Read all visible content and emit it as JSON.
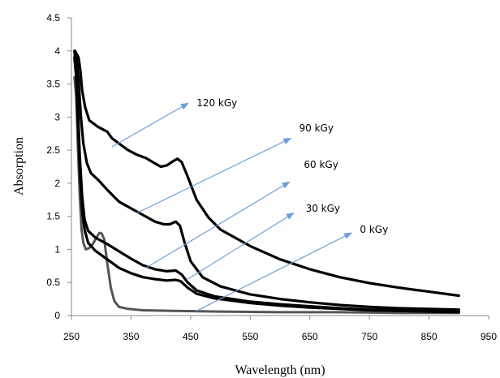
{
  "chart_data": {
    "type": "line",
    "title": "",
    "xlabel": "Wavelength (nm)",
    "ylabel": "Absorption",
    "xlim": [
      250,
      950
    ],
    "ylim": [
      0,
      4.5
    ],
    "xticks": [
      "250",
      "350",
      "450",
      "550",
      "650",
      "750",
      "850",
      "950"
    ],
    "yticks": [
      "0",
      "0.5",
      "1",
      "1.5",
      "2",
      "2.5",
      "3",
      "3.5",
      "4",
      "4.5"
    ],
    "grid": false,
    "legend": "none",
    "series": [
      {
        "name": "0 kGy",
        "color": "#555555",
        "points": [
          [
            255,
            3.6
          ],
          [
            258,
            3.3
          ],
          [
            261,
            2.5
          ],
          [
            264,
            1.8
          ],
          [
            267,
            1.3
          ],
          [
            270,
            1.1
          ],
          [
            274,
            1.0
          ],
          [
            280,
            1.02
          ],
          [
            286,
            1.08
          ],
          [
            292,
            1.18
          ],
          [
            297,
            1.25
          ],
          [
            301,
            1.24
          ],
          [
            305,
            1.15
          ],
          [
            310,
            0.8
          ],
          [
            316,
            0.42
          ],
          [
            322,
            0.22
          ],
          [
            330,
            0.13
          ],
          [
            345,
            0.1
          ],
          [
            370,
            0.08
          ],
          [
            420,
            0.07
          ],
          [
            500,
            0.06
          ],
          [
            600,
            0.05
          ],
          [
            700,
            0.05
          ],
          [
            800,
            0.04
          ],
          [
            900,
            0.04
          ]
        ]
      },
      {
        "name": "30 kGy",
        "color": "#000000",
        "points": [
          [
            255,
            3.9
          ],
          [
            258,
            3.6
          ],
          [
            261,
            2.9
          ],
          [
            264,
            2.2
          ],
          [
            268,
            1.6
          ],
          [
            272,
            1.3
          ],
          [
            278,
            1.1
          ],
          [
            290,
            0.98
          ],
          [
            310,
            0.85
          ],
          [
            330,
            0.72
          ],
          [
            350,
            0.64
          ],
          [
            370,
            0.58
          ],
          [
            390,
            0.55
          ],
          [
            410,
            0.53
          ],
          [
            425,
            0.54
          ],
          [
            433,
            0.52
          ],
          [
            445,
            0.42
          ],
          [
            460,
            0.33
          ],
          [
            490,
            0.26
          ],
          [
            550,
            0.19
          ],
          [
            600,
            0.15
          ],
          [
            650,
            0.12
          ],
          [
            700,
            0.1
          ],
          [
            750,
            0.08
          ],
          [
            800,
            0.07
          ],
          [
            850,
            0.06
          ],
          [
            900,
            0.05
          ]
        ]
      },
      {
        "name": "60 kGy",
        "color": "#000000",
        "points": [
          [
            255,
            4.0
          ],
          [
            258,
            3.75
          ],
          [
            261,
            3.1
          ],
          [
            264,
            2.4
          ],
          [
            268,
            1.8
          ],
          [
            272,
            1.45
          ],
          [
            278,
            1.28
          ],
          [
            290,
            1.18
          ],
          [
            310,
            1.08
          ],
          [
            330,
            0.97
          ],
          [
            350,
            0.86
          ],
          [
            370,
            0.76
          ],
          [
            390,
            0.7
          ],
          [
            410,
            0.67
          ],
          [
            425,
            0.68
          ],
          [
            435,
            0.62
          ],
          [
            445,
            0.5
          ],
          [
            460,
            0.38
          ],
          [
            490,
            0.29
          ],
          [
            550,
            0.21
          ],
          [
            600,
            0.17
          ],
          [
            650,
            0.14
          ],
          [
            700,
            0.11
          ],
          [
            750,
            0.09
          ],
          [
            800,
            0.08
          ],
          [
            850,
            0.07
          ],
          [
            900,
            0.06
          ]
        ]
      },
      {
        "name": "90 kGy",
        "color": "#000000",
        "points": [
          [
            256,
            4.0
          ],
          [
            259,
            3.85
          ],
          [
            262,
            3.55
          ],
          [
            266,
            3.0
          ],
          [
            270,
            2.6
          ],
          [
            276,
            2.3
          ],
          [
            283,
            2.15
          ],
          [
            295,
            2.05
          ],
          [
            310,
            1.9
          ],
          [
            330,
            1.72
          ],
          [
            350,
            1.62
          ],
          [
            370,
            1.52
          ],
          [
            390,
            1.42
          ],
          [
            405,
            1.38
          ],
          [
            415,
            1.38
          ],
          [
            425,
            1.42
          ],
          [
            432,
            1.36
          ],
          [
            440,
            1.1
          ],
          [
            450,
            0.82
          ],
          [
            470,
            0.58
          ],
          [
            500,
            0.44
          ],
          [
            550,
            0.32
          ],
          [
            600,
            0.25
          ],
          [
            650,
            0.2
          ],
          [
            700,
            0.16
          ],
          [
            750,
            0.13
          ],
          [
            800,
            0.11
          ],
          [
            850,
            0.1
          ],
          [
            900,
            0.09
          ]
        ]
      },
      {
        "name": "120 kGy",
        "color": "#000000",
        "points": [
          [
            256,
            4.0
          ],
          [
            259,
            3.95
          ],
          [
            262,
            3.9
          ],
          [
            265,
            3.7
          ],
          [
            268,
            3.4
          ],
          [
            273,
            3.15
          ],
          [
            280,
            2.95
          ],
          [
            295,
            2.85
          ],
          [
            310,
            2.78
          ],
          [
            318,
            2.68
          ],
          [
            330,
            2.6
          ],
          [
            345,
            2.5
          ],
          [
            360,
            2.43
          ],
          [
            375,
            2.38
          ],
          [
            390,
            2.3
          ],
          [
            400,
            2.25
          ],
          [
            410,
            2.27
          ],
          [
            420,
            2.33
          ],
          [
            428,
            2.37
          ],
          [
            435,
            2.32
          ],
          [
            445,
            2.1
          ],
          [
            460,
            1.75
          ],
          [
            480,
            1.48
          ],
          [
            500,
            1.3
          ],
          [
            550,
            1.05
          ],
          [
            600,
            0.85
          ],
          [
            650,
            0.7
          ],
          [
            700,
            0.58
          ],
          [
            750,
            0.49
          ],
          [
            800,
            0.42
          ],
          [
            850,
            0.36
          ],
          [
            900,
            0.3
          ]
        ]
      }
    ],
    "annotations": [
      {
        "text": "120 kGy",
        "arrow_from": [
          318,
          2.55
        ],
        "arrow_to": [
          446,
          3.21
        ],
        "label_at": [
          460,
          3.21
        ]
      },
      {
        "text": "90 kGy",
        "arrow_from": [
          360,
          1.55
        ],
        "arrow_to": [
          618,
          2.68
        ],
        "label_at": [
          632,
          2.83
        ]
      },
      {
        "text": "60 kGy",
        "arrow_from": [
          375,
          0.72
        ],
        "arrow_to": [
          616,
          2.02
        ],
        "label_at": [
          640,
          2.28
        ]
      },
      {
        "text": "30 kGy",
        "arrow_from": [
          445,
          0.55
        ],
        "arrow_to": [
          623,
          1.55
        ],
        "label_at": [
          643,
          1.62
        ]
      },
      {
        "text": "0 kGy",
        "arrow_from": [
          460,
          0.07
        ],
        "arrow_to": [
          720,
          1.25
        ],
        "label_at": [
          734,
          1.3
        ]
      }
    ],
    "arrow_color": "#6f9fd8"
  }
}
